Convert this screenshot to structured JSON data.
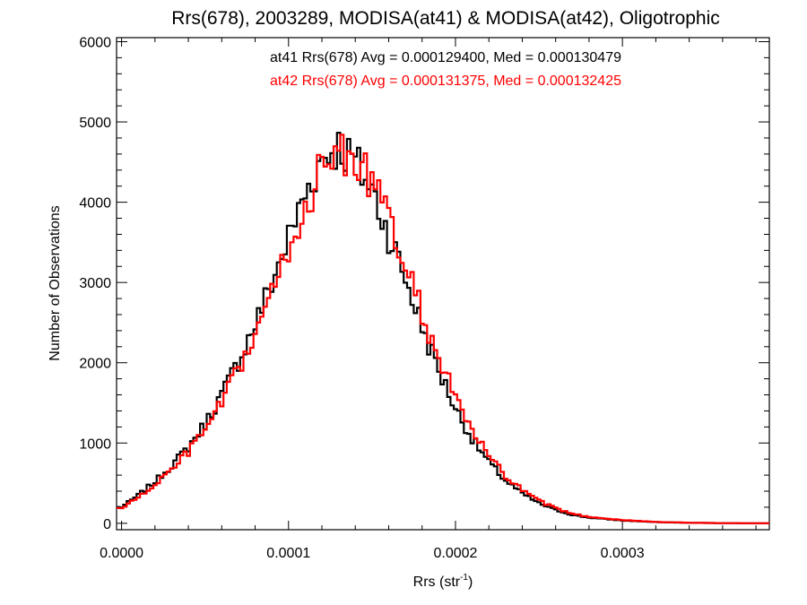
{
  "chart_data": {
    "type": "histogram",
    "title": "Rrs(678), 2003289, MODISA(at41) & MODISA(at42), Oligotrophic",
    "xlabel_main": "Rrs (str",
    "xlabel_sup": "-1",
    "xlabel_close": ")",
    "ylabel": "Number of Observations",
    "xlim": [
      -3e-06,
      0.000388
    ],
    "ylim": [
      -80,
      6050
    ],
    "x_ticks": [
      0.0,
      0.0001,
      0.0002,
      0.0003
    ],
    "x_tick_labels": [
      "0.0000",
      "0.0001",
      "0.0002",
      "0.0003"
    ],
    "y_ticks": [
      0,
      1000,
      2000,
      3000,
      4000,
      5000,
      6000
    ],
    "y_tick_labels": [
      "0",
      "1000",
      "2000",
      "3000",
      "4000",
      "5000",
      "6000"
    ],
    "bin_width": 2e-06,
    "annotations": [
      {
        "text": "at41 Rrs(678) Avg = 0.000129400, Med = 0.000130479",
        "color": "#000000"
      },
      {
        "text": "at42 Rrs(678) Avg = 0.000131375, Med = 0.000132425",
        "color": "#ff0000"
      }
    ],
    "series": [
      {
        "name": "at41",
        "color": "#000000",
        "profile": [
          [
            0.0,
            200
          ],
          [
            1e-05,
            350
          ],
          [
            2e-05,
            520
          ],
          [
            3e-05,
            720
          ],
          [
            4e-05,
            950
          ],
          [
            5e-05,
            1240
          ],
          [
            6e-05,
            1600
          ],
          [
            7e-05,
            2020
          ],
          [
            8e-05,
            2480
          ],
          [
            9e-05,
            3000
          ],
          [
            0.0001,
            3550
          ],
          [
            0.00011,
            4100
          ],
          [
            0.00012,
            4550
          ],
          [
            0.00013,
            4700
          ],
          [
            0.00014,
            4500
          ],
          [
            0.00015,
            4150
          ],
          [
            0.00016,
            3600
          ],
          [
            0.00017,
            3050
          ],
          [
            0.00018,
            2450
          ],
          [
            0.00019,
            1900
          ],
          [
            0.0002,
            1430
          ],
          [
            0.00021,
            1050
          ],
          [
            0.00022,
            760
          ],
          [
            0.00023,
            530
          ],
          [
            0.00024,
            370
          ],
          [
            0.00025,
            250
          ],
          [
            0.00026,
            165
          ],
          [
            0.00027,
            105
          ],
          [
            0.00028,
            70
          ],
          [
            0.0003,
            35
          ],
          [
            0.00032,
            15
          ],
          [
            0.00034,
            6
          ],
          [
            0.00036,
            2
          ],
          [
            0.00038,
            0
          ]
        ]
      },
      {
        "name": "at42",
        "color": "#ff0000",
        "profile": [
          [
            0.0,
            190
          ],
          [
            1e-05,
            320
          ],
          [
            2e-05,
            480
          ],
          [
            3e-05,
            670
          ],
          [
            4e-05,
            890
          ],
          [
            5e-05,
            1160
          ],
          [
            6e-05,
            1500
          ],
          [
            7e-05,
            1900
          ],
          [
            8e-05,
            2350
          ],
          [
            9e-05,
            2850
          ],
          [
            0.0001,
            3400
          ],
          [
            0.00011,
            3950
          ],
          [
            0.00012,
            4400
          ],
          [
            0.00013,
            4650
          ],
          [
            0.00014,
            4550
          ],
          [
            0.00015,
            4250
          ],
          [
            0.00016,
            3750
          ],
          [
            0.00017,
            3200
          ],
          [
            0.00018,
            2620
          ],
          [
            0.00019,
            2060
          ],
          [
            0.0002,
            1560
          ],
          [
            0.00021,
            1150
          ],
          [
            0.00022,
            830
          ],
          [
            0.00023,
            590
          ],
          [
            0.00024,
            410
          ],
          [
            0.00025,
            280
          ],
          [
            0.00026,
            185
          ],
          [
            0.00027,
            120
          ],
          [
            0.00028,
            80
          ],
          [
            0.0003,
            40
          ],
          [
            0.00032,
            17
          ],
          [
            0.00034,
            7
          ],
          [
            0.00036,
            2
          ],
          [
            0.00038,
            0
          ]
        ]
      }
    ]
  }
}
